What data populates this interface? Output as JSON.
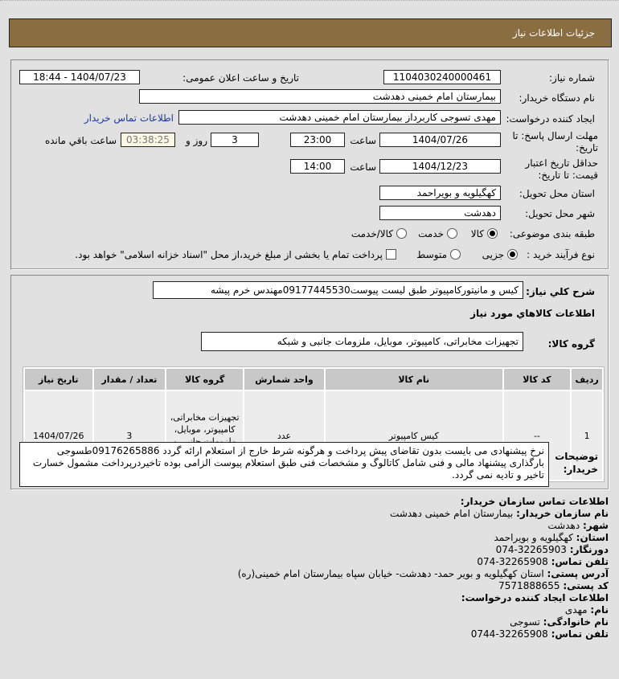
{
  "header": {
    "title": "جزئیات اطلاعات نیاز"
  },
  "form": {
    "need_number_label": "شماره نیاز:",
    "need_number": "1104030240000461",
    "announce_label": "تاریخ و ساعت اعلان عمومی:",
    "announce_value": "1404/07/23 - 18:44",
    "buyer_label": "نام دستگاه خریدار:",
    "buyer": "بیمارستان امام خمینی دهدشت",
    "creator_label": "ایجاد کننده درخواست:",
    "creator": "مهدی تسوجی کاربرداز بیمارستان امام خمینی دهدشت",
    "contact_link": "اطلاعات تماس خریدار",
    "deadline_label": "مهلت ارسال پاسخ: تا تاریخ:",
    "deadline_date": "1404/07/26",
    "time_label": "ساعت",
    "deadline_time": "23:00",
    "days": "3",
    "days_label": "روز و",
    "remaining": "03:38:25",
    "remaining_label": "ساعت باقي مانده",
    "validity_label": "حداقل تاریخ اعتبار قیمت: تا تاریخ:",
    "validity_date": "1404/12/23",
    "validity_time": "14:00",
    "province_label": "استان محل تحویل:",
    "province": "کهگیلویه و بویراحمد",
    "city_label": "شهر محل تحویل:",
    "city": "دهدشت",
    "category_label": "طبقه بندی موضوعی:",
    "category_options": [
      "کالا",
      "خدمت",
      "کالا/خدمت"
    ],
    "category_selected": "کالا",
    "process_label": "نوع فرآیند خرید :",
    "process_options": [
      "جزیی",
      "متوسط"
    ],
    "process_selected": "جزیی",
    "payment_note": "پرداخت تمام یا بخشی از مبلغ خرید،از محل \"اسناد خزانه اسلامی\" خواهد بود."
  },
  "details": {
    "summary_label": "شرح کلي نیاز:",
    "summary": "کیس و مانیتورکامپیوتر طبق لیست پیوست09177445530مهندس خرم پیشه",
    "goods_title": "اطلاعات کالاهاي مورد نیاز",
    "group_label": "گروه کالا:",
    "group": "تجهیزات مخابراتی، کامپیوتر، موبایل، ملزومات جانبی و شبکه",
    "table": {
      "headers": [
        "ردیف",
        "کد کالا",
        "نام کالا",
        "واحد شمارش",
        "گروه کالا",
        "تعداد / مقدار",
        "تاریخ نیاز"
      ],
      "rows": [
        [
          "1",
          "--",
          "کیس کامپیوتر",
          "عدد",
          "تجهیزات مخابراتی، کامپیوتر، موبایل، ملزومات جانبی و شبکه",
          "3",
          "1404/07/26"
        ]
      ]
    },
    "notes_label": "توضیحات خریدار:",
    "notes": "نرخ پیشنهادی می بایست بدون تقاضای پیش پرداخت و هرگونه شرط خارج از استعلام ارائه گردد 09176265886طسوجی بارگذاری پیشنهاد مالی و فنی شامل کاتالوگ و مشخصات فنی طبق استعلام پیوست الزامی بوده تاخیردرپرداخت مشمول خسارت تاخیر و تادیه نمی گردد."
  },
  "contact": {
    "title": "اطلاعات تماس سازمان خریدار:",
    "org_label": "نام سازمان خریدار:",
    "org": "بیمارستان امام خمینی دهدشت",
    "city_label": "شهر:",
    "city": "دهدشت",
    "province_label": "استان:",
    "province": "کهگیلویه و بویراحمد",
    "fax_label": "دورنگار:",
    "fax": "32265903-074",
    "phone_label": "تلفن تماس:",
    "phone": "32265908-074",
    "address_label": "آدرس پستی:",
    "address": "استان کهگیلویه و بویر حمد- دهدشت- خیابان سپاه بیمارستان امام خمینی(ره)",
    "postal_label": "کد پستی:",
    "postal": "7571888655",
    "creator_title": "اطلاعات ایجاد کننده درخواست:",
    "name_label": "نام:",
    "name": "مهدی",
    "family_label": "نام خانوادگی:",
    "family": "تسوجی",
    "creator_phone_label": "تلفن تماس:",
    "creator_phone": "32265908-0744"
  }
}
